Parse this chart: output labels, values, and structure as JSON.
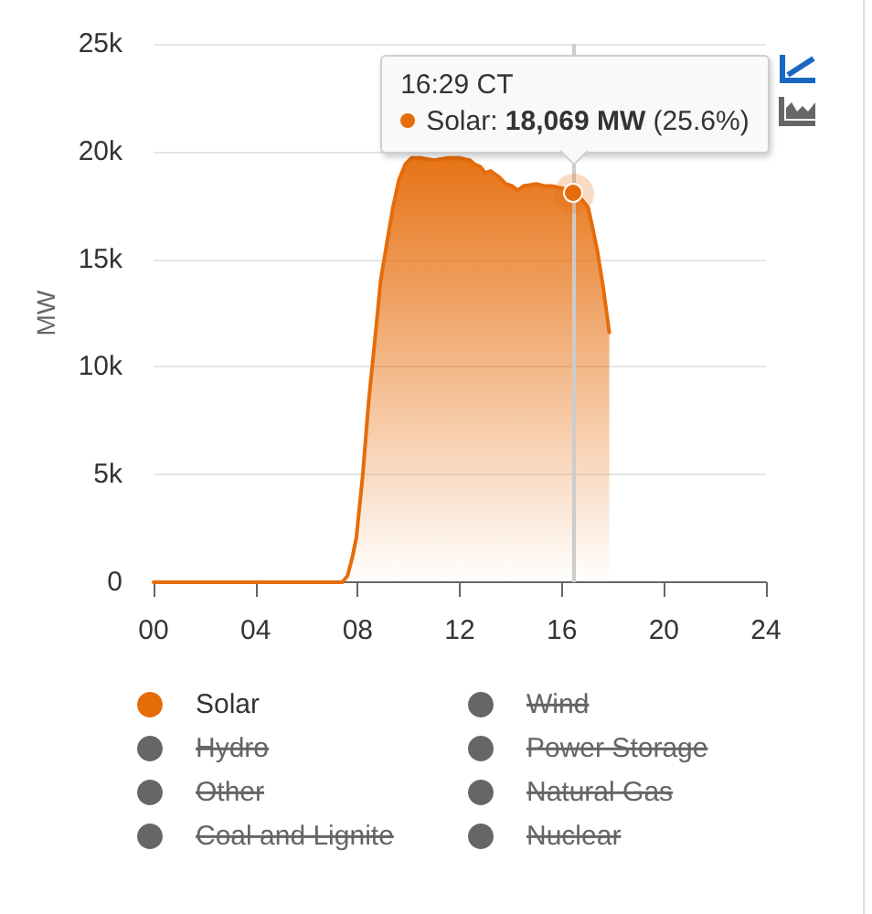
{
  "chart_data": {
    "type": "area",
    "ylabel": "MW",
    "x": [
      0,
      7.4,
      7.6,
      7.8,
      7.95,
      8.2,
      8.43,
      8.67,
      8.9,
      9.15,
      9.38,
      9.62,
      9.86,
      10.1,
      10.5,
      11,
      11.5,
      12,
      12.4,
      12.6,
      12.8,
      13,
      13.2,
      13.56,
      13.8,
      14.04,
      14.28,
      14.5,
      15,
      15.3,
      15.6,
      16,
      16.2,
      16.483,
      16.7,
      17.03,
      17.2,
      17.39,
      17.62,
      17.86
    ],
    "xlim": [
      0,
      24
    ],
    "xticks": [
      {
        "value": 0,
        "label": "00"
      },
      {
        "value": 4,
        "label": "04"
      },
      {
        "value": 8,
        "label": "08"
      },
      12,
      16,
      20,
      24
    ],
    "ylim": [
      0,
      25000
    ],
    "yticks": [
      0,
      {
        "value": 5000,
        "label": "5k"
      },
      {
        "value": 10000,
        "label": "10k"
      },
      {
        "value": 15000,
        "label": "15k"
      },
      {
        "value": 20000,
        "label": "20k"
      },
      {
        "value": 25000,
        "label": "25k"
      }
    ],
    "series": [
      {
        "name": "Solar",
        "color": "#e66c0a",
        "values": [
          0,
          0,
          300,
          1200,
          2100,
          5000,
          8400,
          11200,
          14000,
          15800,
          17400,
          18700,
          19400,
          19700,
          19700,
          19600,
          19700,
          19700,
          19600,
          19400,
          19300,
          19000,
          19100,
          18800,
          18500,
          18400,
          18200,
          18400,
          18500,
          18400,
          18400,
          18300,
          18200,
          18069,
          17900,
          17400,
          16500,
          15400,
          13700,
          11600
        ]
      },
      {
        "name": "Wind",
        "color": "#666666",
        "values": [
          null,
          null,
          null,
          null,
          null,
          null,
          null,
          null,
          null,
          null,
          null,
          null,
          null,
          null,
          null,
          null,
          null,
          null,
          null,
          null,
          null,
          null,
          null,
          null,
          null,
          null,
          null,
          null,
          null,
          null,
          null,
          null,
          null,
          null,
          null,
          null,
          null,
          null,
          null,
          null
        ]
      },
      {
        "name": "Hydro",
        "color": "#666666",
        "values": [
          null,
          null,
          null,
          null,
          null,
          null,
          null,
          null,
          null,
          null,
          null,
          null,
          null,
          null,
          null,
          null,
          null,
          null,
          null,
          null,
          null,
          null,
          null,
          null,
          null,
          null,
          null,
          null,
          null,
          null,
          null,
          null,
          null,
          null,
          null,
          null,
          null,
          null,
          null,
          null
        ]
      },
      {
        "name": "Power Storage",
        "color": "#666666",
        "values": [
          null,
          null,
          null,
          null,
          null,
          null,
          null,
          null,
          null,
          null,
          null,
          null,
          null,
          null,
          null,
          null,
          null,
          null,
          null,
          null,
          null,
          null,
          null,
          null,
          null,
          null,
          null,
          null,
          null,
          null,
          null,
          null,
          null,
          null,
          null,
          null,
          null,
          null,
          null,
          null
        ]
      },
      {
        "name": "Other",
        "color": "#666666",
        "values": [
          null,
          null,
          null,
          null,
          null,
          null,
          null,
          null,
          null,
          null,
          null,
          null,
          null,
          null,
          null,
          null,
          null,
          null,
          null,
          null,
          null,
          null,
          null,
          null,
          null,
          null,
          null,
          null,
          null,
          null,
          null,
          null,
          null,
          null,
          null,
          null,
          null,
          null,
          null,
          null
        ]
      },
      {
        "name": "Natural Gas",
        "color": "#666666",
        "values": [
          null,
          null,
          null,
          null,
          null,
          null,
          null,
          null,
          null,
          null,
          null,
          null,
          null,
          null,
          null,
          null,
          null,
          null,
          null,
          null,
          null,
          null,
          null,
          null,
          null,
          null,
          null,
          null,
          null,
          null,
          null,
          null,
          null,
          null,
          null,
          null,
          null,
          null,
          null,
          null
        ]
      },
      {
        "name": "Coal and Lignite",
        "color": "#666666",
        "values": [
          null,
          null,
          null,
          null,
          null,
          null,
          null,
          null,
          null,
          null,
          null,
          null,
          null,
          null,
          null,
          null,
          null,
          null,
          null,
          null,
          null,
          null,
          null,
          null,
          null,
          null,
          null,
          null,
          null,
          null,
          null,
          null,
          null,
          null,
          null,
          null,
          null,
          null,
          null,
          null
        ]
      },
      {
        "name": "Nuclear",
        "color": "#666666",
        "values": [
          null,
          null,
          null,
          null,
          null,
          null,
          null,
          null,
          null,
          null,
          null,
          null,
          null,
          null,
          null,
          null,
          null,
          null,
          null,
          null,
          null,
          null,
          null,
          null,
          null,
          null,
          null,
          null,
          null,
          null,
          null,
          null,
          null,
          null,
          null,
          null,
          null,
          null,
          null,
          null
        ]
      }
    ],
    "annotations": [
      {
        "text": "16:29 CT\nSolar: 18,069 MW (25.6%)",
        "x": 16.483,
        "y": 18069
      }
    ],
    "ref_lines": [
      {
        "axis": "x",
        "value": 16.483,
        "color": "#cccccc"
      }
    ],
    "grid": "y",
    "legend": "bottom",
    "marker": "none"
  }
}
